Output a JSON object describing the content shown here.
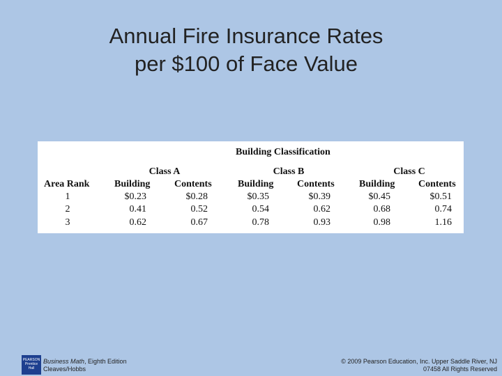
{
  "title": {
    "line1": "Annual Fire Insurance Rates",
    "line2": "per $100 of Face Value"
  },
  "table": {
    "group_header": "Building Classification",
    "classes": [
      "Class A",
      "Class B",
      "Class C"
    ],
    "columns": [
      "Area Rank",
      "Building",
      "Contents",
      "Building",
      "Contents",
      "Building",
      "Contents"
    ],
    "rows": [
      [
        "1",
        "$0.23",
        "$0.28",
        "$0.35",
        "$0.39",
        "$0.45",
        "$0.51"
      ],
      [
        "2",
        "0.41",
        "0.52",
        "0.54",
        "0.62",
        "0.68",
        "0.74"
      ],
      [
        "3",
        "0.62",
        "0.67",
        "0.78",
        "0.93",
        "0.98",
        "1.16"
      ]
    ]
  },
  "footer": {
    "logo_line1": "PEARSON",
    "logo_line2": "Prentice",
    "logo_line3": "Hall",
    "book_title": "Business Math",
    "edition": ", Eighth Edition",
    "authors": "Cleaves/Hobbs",
    "copyright_line1": "© 2009 Pearson Education, Inc. Upper Saddle River, NJ",
    "copyright_line2": "07458  All Rights Reserved"
  },
  "colors": {
    "background": "#adc6e5",
    "table_background": "#ffffff",
    "logo": "#1d3f8f"
  }
}
